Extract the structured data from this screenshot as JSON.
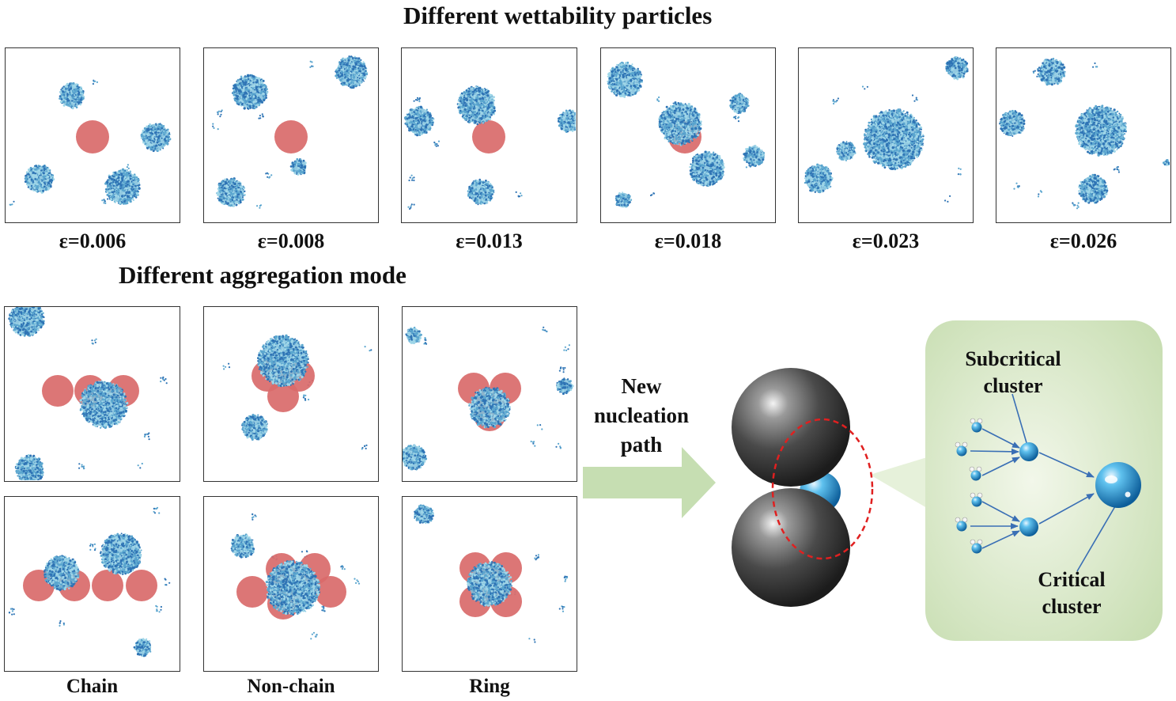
{
  "titles": {
    "wettability": "Different wettability particles",
    "aggregation": "Different aggregation mode"
  },
  "wettability_labels": [
    "ε=0.006",
    "ε=0.008",
    "ε=0.013",
    "ε=0.018",
    "ε=0.023",
    "ε=0.026"
  ],
  "aggregation_labels": [
    "Chain",
    "Non-chain",
    "Ring"
  ],
  "arrow_text": [
    "New",
    "nucleation",
    "path"
  ],
  "cluster_labels": {
    "subcritical": [
      "Subcritical",
      "cluster"
    ],
    "critical": [
      "Critical",
      "cluster"
    ]
  },
  "colors": {
    "particle": "#d96a6a",
    "water_cluster": "#5ba6cf",
    "arrow": "#c5deb0",
    "box_bg": "#dfeccd",
    "dashed_ellipse": "#e02020",
    "sphere": "#555555"
  }
}
